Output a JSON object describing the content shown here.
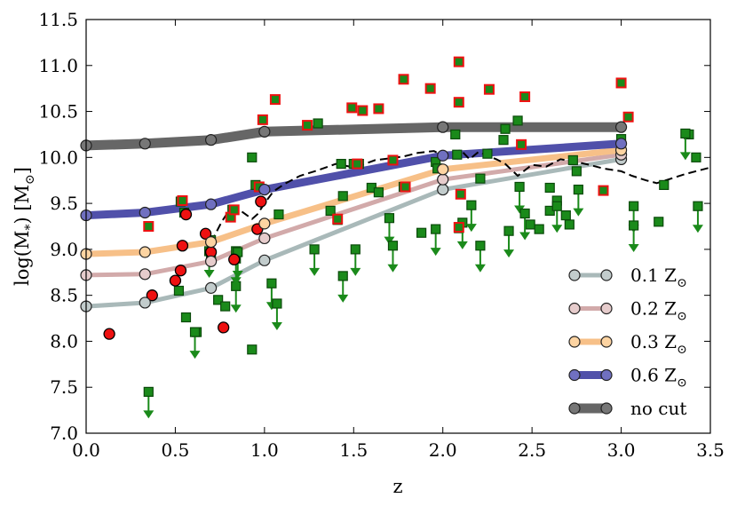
{
  "chart_data": {
    "type": "scatter",
    "title": "",
    "xlabel": "z",
    "ylabel": "log(M*) [M⊙]",
    "ylabel_parts": {
      "main": "log(M",
      "sub": "*",
      "mid": ") [M",
      "sun": "⊙",
      "end": "]"
    },
    "xlim": [
      0.0,
      3.5
    ],
    "ylim": [
      7.0,
      11.5
    ],
    "xticks": [
      0.0,
      0.5,
      1.0,
      1.5,
      2.0,
      2.5,
      3.0,
      3.5
    ],
    "yticks": [
      7.0,
      7.5,
      8.0,
      8.5,
      9.0,
      9.5,
      10.0,
      10.5,
      11.0,
      11.5
    ],
    "xtick_labels": [
      "0.0",
      "0.5",
      "1.0",
      "1.5",
      "2.0",
      "2.5",
      "3.0",
      "3.5"
    ],
    "ytick_labels": [
      "7.0",
      "7.5",
      "8.0",
      "8.5",
      "9.0",
      "9.5",
      "10.0",
      "10.5",
      "11.0",
      "11.5"
    ],
    "legend_position": "lower-right",
    "colors": {
      "green_fill": "#1a8a1a",
      "green_edge": "#0b4a0b",
      "red": "#ee1111",
      "dashed": "#000000",
      "marker_edge": "#222222"
    },
    "curves": [
      {
        "name": "0.1 Z⊙",
        "label_main": "0.1 Z",
        "color": "#a9b9b9",
        "width": 5,
        "marker_fill": "#c2cccc",
        "x": [
          0.0,
          0.33,
          0.7,
          1.0,
          2.0,
          3.0
        ],
        "y": [
          8.38,
          8.42,
          8.58,
          8.88,
          9.65,
          9.98
        ]
      },
      {
        "name": "0.2 Z⊙",
        "label_main": "0.2 Z",
        "color": "#d2aaaa",
        "width": 5,
        "marker_fill": "#e6cccc",
        "x": [
          0.0,
          0.33,
          0.7,
          1.0,
          2.0,
          3.0
        ],
        "y": [
          8.72,
          8.73,
          8.87,
          9.12,
          9.76,
          10.03
        ]
      },
      {
        "name": "0.3 Z⊙",
        "label_main": "0.3 Z",
        "color": "#f7c088",
        "width": 7,
        "marker_fill": "#fdd4a2",
        "x": [
          0.0,
          0.33,
          0.7,
          1.0,
          2.0,
          3.0
        ],
        "y": [
          8.95,
          8.97,
          9.08,
          9.28,
          9.87,
          10.08
        ]
      },
      {
        "name": "0.6 Z⊙",
        "label_main": "0.6 Z",
        "color": "#5050aa",
        "width": 9,
        "marker_fill": "#7070c0",
        "x": [
          0.0,
          0.33,
          0.7,
          1.0,
          2.0,
          3.0
        ],
        "y": [
          9.37,
          9.4,
          9.49,
          9.65,
          10.02,
          10.15
        ]
      },
      {
        "name": "no cut",
        "label_main": "no cut",
        "color": "#666666",
        "width": 11,
        "marker_fill": "#777777",
        "x": [
          0.0,
          0.33,
          0.7,
          1.0,
          2.0,
          3.0
        ],
        "y": [
          10.13,
          10.15,
          10.19,
          10.28,
          10.33,
          10.33
        ]
      }
    ],
    "dashed_line": {
      "x": [
        0.68,
        0.72,
        0.76,
        0.8,
        0.86,
        0.93,
        0.96,
        1.0,
        1.05,
        1.12,
        1.2,
        1.3,
        1.4,
        1.48,
        1.55,
        1.62,
        1.7,
        1.78,
        1.86,
        1.95,
        2.0,
        2.06,
        2.1,
        2.15,
        2.2,
        2.25,
        2.3,
        2.35,
        2.42,
        2.5,
        2.58,
        2.66,
        2.75,
        2.82,
        2.9,
        3.0,
        3.06,
        3.14,
        3.2,
        3.28,
        3.36,
        3.44,
        3.5
      ],
      "y": [
        8.95,
        9.15,
        9.3,
        9.42,
        9.43,
        9.33,
        9.38,
        9.5,
        9.63,
        9.72,
        9.8,
        9.86,
        9.93,
        9.9,
        9.92,
        9.97,
        9.99,
        10.01,
        10.05,
        10.07,
        10.02,
        10.05,
        10.08,
        9.98,
        10.06,
        10.02,
        9.98,
        9.93,
        9.8,
        9.92,
        9.9,
        9.98,
        9.95,
        9.92,
        9.88,
        9.85,
        9.8,
        9.75,
        9.72,
        9.77,
        9.82,
        9.86,
        9.89
      ]
    },
    "green_squares": [
      [
        0.35,
        9.25
      ],
      [
        0.53,
        9.52
      ],
      [
        0.55,
        9.4
      ],
      [
        0.52,
        8.55
      ],
      [
        0.56,
        8.26
      ],
      [
        0.62,
        8.1
      ],
      [
        0.7,
        9.1
      ],
      [
        0.7,
        8.95
      ],
      [
        0.74,
        8.45
      ],
      [
        0.78,
        8.38
      ],
      [
        0.81,
        9.35
      ],
      [
        0.82,
        9.43
      ],
      [
        0.84,
        8.98
      ],
      [
        0.93,
        10.0
      ],
      [
        0.93,
        7.91
      ],
      [
        0.95,
        9.7
      ],
      [
        1.08,
        9.38
      ],
      [
        1.24,
        10.35
      ],
      [
        1.3,
        10.37
      ],
      [
        1.37,
        9.42
      ],
      [
        1.41,
        9.32
      ],
      [
        1.43,
        9.93
      ],
      [
        1.44,
        9.58
      ],
      [
        1.5,
        9.93
      ],
      [
        1.53,
        9.93
      ],
      [
        1.6,
        9.67
      ],
      [
        1.64,
        9.62
      ],
      [
        1.72,
        9.97
      ],
      [
        1.78,
        9.68
      ],
      [
        1.88,
        9.18
      ],
      [
        1.96,
        9.95
      ],
      [
        1.97,
        9.88
      ],
      [
        2.07,
        10.25
      ],
      [
        2.08,
        10.03
      ],
      [
        2.09,
        9.23
      ],
      [
        2.21,
        9.77
      ],
      [
        2.25,
        10.04
      ],
      [
        2.34,
        10.19
      ],
      [
        2.35,
        10.31
      ],
      [
        2.42,
        10.4
      ],
      [
        2.44,
        10.14
      ],
      [
        2.49,
        9.27
      ],
      [
        2.54,
        9.22
      ],
      [
        2.6,
        9.67
      ],
      [
        2.6,
        9.42
      ],
      [
        2.64,
        9.53
      ],
      [
        2.69,
        9.37
      ],
      [
        2.71,
        9.27
      ],
      [
        2.73,
        9.97
      ],
      [
        2.75,
        9.85
      ],
      [
        3.0,
        10.2
      ],
      [
        3.21,
        9.3
      ],
      [
        3.24,
        9.7
      ],
      [
        3.38,
        10.25
      ],
      [
        3.42,
        10.0
      ]
    ],
    "green_upper_limits": [
      [
        0.35,
        7.45
      ],
      [
        0.61,
        8.1
      ],
      [
        0.69,
        8.98
      ],
      [
        0.84,
        8.6
      ],
      [
        0.84,
        8.9
      ],
      [
        0.85,
        8.97
      ],
      [
        1.04,
        8.63
      ],
      [
        1.07,
        8.41
      ],
      [
        1.28,
        9.0
      ],
      [
        1.44,
        8.71
      ],
      [
        1.51,
        9.0
      ],
      [
        1.7,
        9.34
      ],
      [
        1.72,
        9.04
      ],
      [
        1.96,
        9.22
      ],
      [
        2.11,
        9.29
      ],
      [
        2.16,
        9.48
      ],
      [
        2.21,
        9.04
      ],
      [
        2.37,
        9.2
      ],
      [
        2.43,
        9.68
      ],
      [
        2.46,
        9.39
      ],
      [
        2.64,
        9.47
      ],
      [
        2.76,
        9.65
      ],
      [
        3.07,
        9.47
      ],
      [
        3.07,
        9.26
      ],
      [
        3.36,
        10.26
      ],
      [
        3.43,
        9.47
      ]
    ],
    "green_squares_red_edge": [
      [
        0.35,
        9.25
      ],
      [
        0.54,
        9.53
      ],
      [
        0.81,
        9.35
      ],
      [
        0.83,
        9.43
      ],
      [
        0.99,
        10.41
      ],
      [
        1.06,
        10.63
      ],
      [
        1.24,
        10.35
      ],
      [
        1.41,
        9.33
      ],
      [
        1.49,
        10.54
      ],
      [
        1.55,
        10.51
      ],
      [
        1.64,
        10.53
      ],
      [
        1.72,
        9.97
      ],
      [
        1.78,
        10.85
      ],
      [
        1.79,
        9.68
      ],
      [
        1.93,
        10.75
      ],
      [
        2.09,
        11.04
      ],
      [
        2.09,
        10.6
      ],
      [
        2.1,
        9.6
      ],
      [
        2.09,
        9.24
      ],
      [
        2.26,
        10.74
      ],
      [
        2.44,
        10.14
      ],
      [
        2.46,
        10.66
      ],
      [
        2.9,
        9.64
      ],
      [
        3.0,
        10.81
      ],
      [
        3.04,
        10.44
      ],
      [
        1.52,
        9.93
      ],
      [
        0.97,
        9.68
      ]
    ],
    "red_circles": [
      [
        0.13,
        8.08
      ],
      [
        0.37,
        8.5
      ],
      [
        0.5,
        8.66
      ],
      [
        0.53,
        8.77
      ],
      [
        0.54,
        9.04
      ],
      [
        0.56,
        9.38
      ],
      [
        0.67,
        9.17
      ],
      [
        0.7,
        8.97
      ],
      [
        0.77,
        8.15
      ],
      [
        0.83,
        8.89
      ],
      [
        0.96,
        9.22
      ],
      [
        0.98,
        9.52
      ]
    ]
  }
}
